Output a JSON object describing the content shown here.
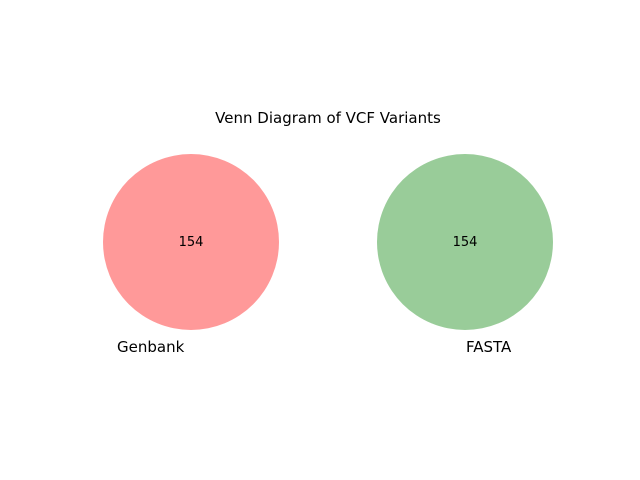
{
  "diagram": {
    "title": "Venn Diagram of VCF Variants",
    "sets": [
      {
        "label": "Genbank",
        "count": "154",
        "color": "#ff9999"
      },
      {
        "label": "FASTA",
        "count": "154",
        "color": "#99cc99"
      }
    ]
  }
}
